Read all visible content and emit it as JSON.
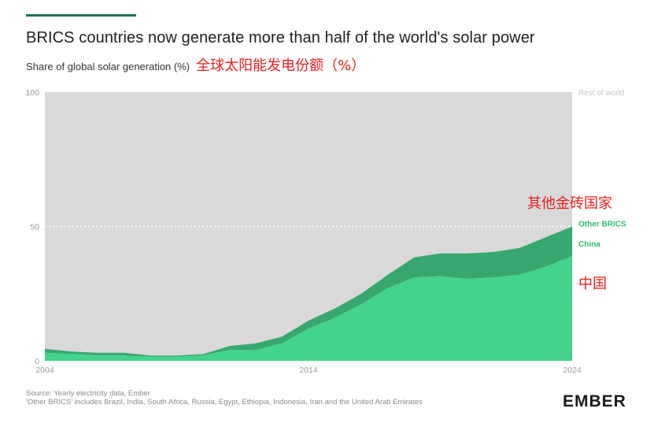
{
  "header": {
    "title": "BRICS countries now generate more than half of the world's solar power",
    "subtitle": "Share of global solar generation (%)",
    "subtitle_cn": "全球太阳能发电份额（%）"
  },
  "annotations": {
    "other_brics_cn": "其他金砖国家",
    "china_cn": "中国"
  },
  "footer": {
    "source": "Source: Yearly electricity data, Ember",
    "note": "'Other BRICS' includes Brazil, India, South Africa, Russia, Egypt, Ethiopia, Indonesia, Iran and the United Arab Emirates"
  },
  "logo": "EMBER",
  "colors": {
    "rest_of_world": "#d9d9d9",
    "other_brics": "#37a86e",
    "china": "#43d38b",
    "label_green": "#2fbf73",
    "label_grey": "#c4c4c4",
    "accent_red": "#ea1d1d"
  },
  "chart_data": {
    "type": "area",
    "stacked": true,
    "x": [
      2004,
      2005,
      2006,
      2007,
      2008,
      2009,
      2010,
      2011,
      2012,
      2013,
      2014,
      2015,
      2016,
      2017,
      2018,
      2019,
      2020,
      2021,
      2022,
      2023,
      2024
    ],
    "xticks": [
      "2004",
      "2014",
      "2024"
    ],
    "yticks": [
      "0",
      "50",
      "100"
    ],
    "ylim": [
      0,
      100
    ],
    "reference_line": 50,
    "series": [
      {
        "name": "China",
        "values": [
          3,
          2.5,
          2,
          2,
          1.5,
          1.5,
          2,
          4,
          4,
          6.5,
          12,
          16,
          21,
          27,
          31,
          31.5,
          30.5,
          31,
          32,
          35,
          39
        ]
      },
      {
        "name": "Other BRICS",
        "values": [
          1.5,
          1,
          1,
          1,
          0.5,
          0.5,
          0.5,
          1.5,
          2.5,
          2.5,
          3,
          3.5,
          4,
          5,
          7.5,
          8.5,
          9.5,
          9.5,
          10,
          11,
          11
        ]
      },
      {
        "name": "Rest of world",
        "values": [
          95.5,
          96.5,
          97,
          97,
          98,
          98,
          97.5,
          94.5,
          93.5,
          91,
          85,
          80.5,
          75,
          68,
          61.5,
          60,
          60,
          59.5,
          58,
          54,
          50
        ]
      }
    ]
  }
}
